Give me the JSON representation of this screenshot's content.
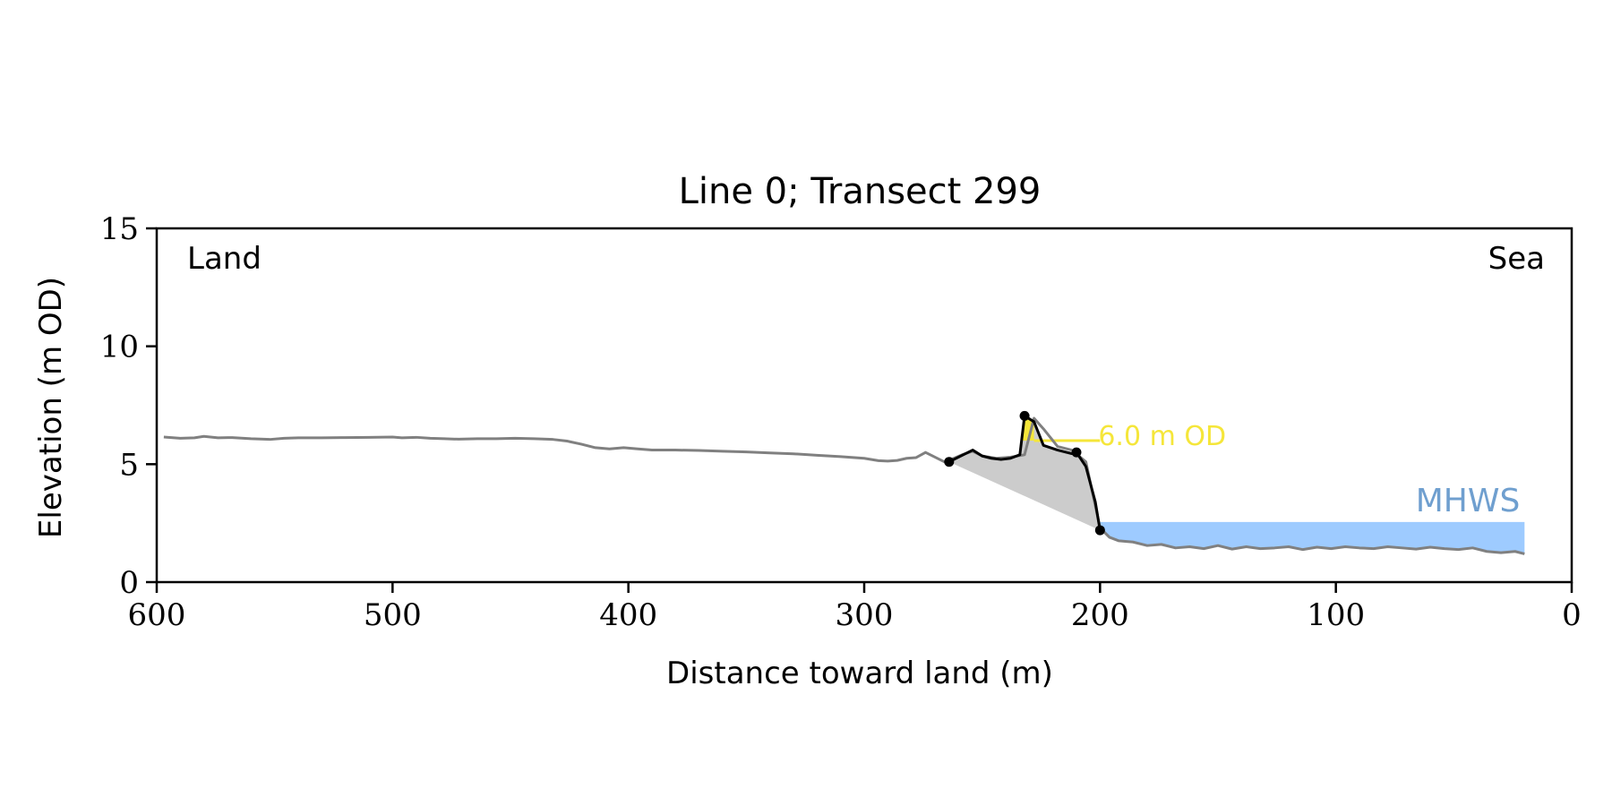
{
  "chart_data": {
    "type": "line",
    "title": "Line 0; Transect 299",
    "xlabel": "Distance toward land (m)",
    "ylabel": "Elevation (m OD)",
    "xlim": [
      600,
      0
    ],
    "ylim": [
      0,
      15
    ],
    "x_ticks": [
      600,
      500,
      400,
      300,
      200,
      100,
      0
    ],
    "y_ticks": [
      0,
      5,
      10,
      15
    ],
    "grid": false,
    "corner_labels": {
      "left": "Land",
      "right": "Sea"
    },
    "profile": {
      "color": "#808080",
      "x": [
        597,
        590,
        584,
        580,
        574,
        568,
        560,
        552,
        546,
        540,
        530,
        520,
        510,
        500,
        496,
        490,
        484,
        478,
        472,
        464,
        456,
        448,
        440,
        432,
        426,
        420,
        414,
        408,
        402,
        396,
        390,
        380,
        370,
        360,
        350,
        340,
        330,
        320,
        310,
        300,
        294,
        290,
        286,
        282,
        278,
        274,
        270,
        266,
        262,
        258,
        254,
        250,
        244,
        238,
        232,
        228,
        224,
        218,
        212,
        206,
        200,
        196,
        192,
        186,
        180,
        174,
        168,
        162,
        156,
        150,
        144,
        138,
        132,
        126,
        120,
        114,
        108,
        102,
        96,
        90,
        84,
        78,
        72,
        66,
        60,
        54,
        48,
        42,
        36,
        30,
        24,
        20
      ],
      "y": [
        6.15,
        6.1,
        6.12,
        6.18,
        6.12,
        6.13,
        6.08,
        6.05,
        6.1,
        6.12,
        6.12,
        6.13,
        6.14,
        6.15,
        6.12,
        6.14,
        6.1,
        6.08,
        6.06,
        6.08,
        6.08,
        6.1,
        6.08,
        6.05,
        5.98,
        5.85,
        5.7,
        5.65,
        5.7,
        5.65,
        5.6,
        5.6,
        5.58,
        5.55,
        5.52,
        5.48,
        5.44,
        5.38,
        5.32,
        5.25,
        5.15,
        5.13,
        5.16,
        5.25,
        5.28,
        5.5,
        5.3,
        5.1,
        5.25,
        5.42,
        5.55,
        5.35,
        5.25,
        5.3,
        5.4,
        6.95,
        6.5,
        5.75,
        5.6,
        5.1,
        2.3,
        1.9,
        1.75,
        1.7,
        1.55,
        1.6,
        1.45,
        1.5,
        1.42,
        1.55,
        1.4,
        1.5,
        1.42,
        1.45,
        1.5,
        1.38,
        1.48,
        1.42,
        1.5,
        1.45,
        1.42,
        1.5,
        1.45,
        1.4,
        1.48,
        1.42,
        1.38,
        1.45,
        1.3,
        1.25,
        1.3,
        1.2
      ]
    },
    "dune": {
      "color": "#000000",
      "x": [
        264,
        258,
        254,
        250,
        246,
        242,
        238,
        234,
        232,
        228,
        224,
        218,
        212,
        210,
        206,
        202,
        200
      ],
      "y": [
        5.1,
        5.4,
        5.6,
        5.35,
        5.25,
        5.2,
        5.25,
        5.4,
        7.05,
        6.8,
        5.8,
        5.6,
        5.45,
        5.5,
        4.9,
        3.4,
        2.2
      ],
      "points": [
        {
          "x": 264,
          "y": 5.1
        },
        {
          "x": 232,
          "y": 7.05
        },
        {
          "x": 210,
          "y": 5.5
        },
        {
          "x": 200,
          "y": 2.2
        }
      ],
      "fill_color": "#cccccc"
    },
    "threshold": {
      "value": 6.0,
      "label": "6.0 m OD",
      "color": "#f5e63a",
      "x_range": [
        228,
        200
      ]
    },
    "mhws": {
      "label": "MHWS",
      "level": 2.55,
      "x_range": [
        200,
        20
      ],
      "color": "#9ecbff",
      "label_color": "#6f9fcf"
    }
  }
}
